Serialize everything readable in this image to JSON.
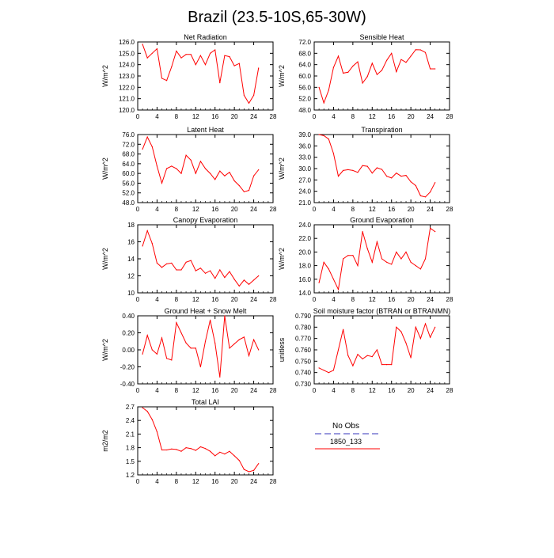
{
  "figure": {
    "title": "Brazil (23.5-10S,65-30W)"
  },
  "legend": {
    "entries": [
      {
        "label": "No Obs",
        "color": "#9999dd",
        "style": "dashed"
      },
      {
        "label": "1850_133",
        "color": "#ff0000",
        "style": "solid"
      }
    ]
  },
  "chart_data": [
    {
      "type": "line",
      "title": "Net Radiation",
      "ylabel": "W/m^2",
      "xlim": [
        0,
        28
      ],
      "xticks": [
        0,
        4,
        8,
        12,
        16,
        20,
        24,
        28
      ],
      "ylim": [
        120.0,
        126.0
      ],
      "yticks": [
        "120.0",
        "121.0",
        "122.0",
        "123.0",
        "124.0",
        "125.0",
        "126.0"
      ],
      "grid": false,
      "series": [
        {
          "name": "1850_133",
          "color": "#ff0000",
          "x": [
            1,
            2,
            3,
            4,
            5,
            6,
            7,
            8,
            9,
            10,
            11,
            12,
            13,
            14,
            15,
            16,
            17,
            18,
            19,
            20,
            21,
            22,
            23,
            24,
            25
          ],
          "y": [
            125.8,
            124.6,
            125.0,
            125.4,
            122.8,
            122.6,
            123.8,
            125.2,
            124.6,
            124.9,
            124.9,
            124.0,
            124.8,
            124.0,
            125.0,
            125.3,
            122.4,
            124.8,
            124.7,
            123.9,
            124.1,
            121.3,
            120.6,
            121.3,
            123.7
          ]
        }
      ]
    },
    {
      "type": "line",
      "title": "Sensible Heat",
      "ylabel": "W/m^2",
      "xlim": [
        0,
        28
      ],
      "xticks": [
        0,
        4,
        8,
        12,
        16,
        20,
        24,
        28
      ],
      "ylim": [
        48.0,
        72.0
      ],
      "yticks": [
        "48.0",
        "52.0",
        "56.0",
        "60.0",
        "64.0",
        "68.0",
        "72.0"
      ],
      "grid": false,
      "series": [
        {
          "name": "1850_133",
          "color": "#ff0000",
          "x": [
            1,
            2,
            3,
            4,
            5,
            6,
            7,
            8,
            9,
            10,
            11,
            12,
            13,
            14,
            15,
            16,
            17,
            18,
            19,
            20,
            21,
            22,
            23,
            24,
            25
          ],
          "y": [
            56.0,
            50.5,
            55.0,
            63.0,
            67.0,
            61.0,
            61.3,
            63.5,
            65.0,
            57.5,
            59.8,
            64.5,
            60.5,
            62.0,
            65.5,
            68.0,
            61.5,
            65.8,
            64.8,
            67.0,
            69.3,
            69.2,
            68.3,
            62.5,
            62.5
          ]
        }
      ]
    },
    {
      "type": "line",
      "title": "Latent Heat",
      "ylabel": "W/m^2",
      "xlim": [
        0,
        28
      ],
      "xticks": [
        0,
        4,
        8,
        12,
        16,
        20,
        24,
        28
      ],
      "ylim": [
        48.0,
        76.0
      ],
      "yticks": [
        "48.0",
        "52.0",
        "56.0",
        "60.0",
        "64.0",
        "68.0",
        "72.0",
        "76.0"
      ],
      "grid": false,
      "series": [
        {
          "name": "1850_133",
          "color": "#ff0000",
          "x": [
            1,
            2,
            3,
            4,
            5,
            6,
            7,
            8,
            9,
            10,
            11,
            12,
            13,
            14,
            15,
            16,
            17,
            18,
            19,
            20,
            21,
            22,
            23,
            24,
            25
          ],
          "y": [
            70.0,
            75.0,
            71.0,
            63.0,
            56.0,
            62.0,
            63.0,
            62.0,
            60.0,
            67.5,
            65.5,
            60.0,
            65.0,
            62.0,
            60.0,
            57.5,
            61.0,
            59.0,
            60.5,
            57.0,
            55.0,
            52.5,
            53.0,
            59.0,
            61.5
          ]
        }
      ]
    },
    {
      "type": "line",
      "title": "Transpiration",
      "ylabel": "W/m^2",
      "xlim": [
        0,
        28
      ],
      "xticks": [
        0,
        4,
        8,
        12,
        16,
        20,
        24,
        28
      ],
      "ylim": [
        21.0,
        39.0
      ],
      "yticks": [
        "21.0",
        "24.0",
        "27.0",
        "30.0",
        "33.0",
        "36.0",
        "39.0"
      ],
      "grid": false,
      "series": [
        {
          "name": "1850_133",
          "color": "#ff0000",
          "x": [
            1,
            2,
            3,
            4,
            5,
            6,
            7,
            8,
            9,
            10,
            11,
            12,
            13,
            14,
            15,
            16,
            17,
            18,
            19,
            20,
            21,
            22,
            23,
            24,
            25
          ],
          "y": [
            39.0,
            38.7,
            37.8,
            34.0,
            28.0,
            29.5,
            29.7,
            29.5,
            29.0,
            30.8,
            30.6,
            28.8,
            30.2,
            29.8,
            28.0,
            27.5,
            28.8,
            28.0,
            28.2,
            26.5,
            25.5,
            22.8,
            22.5,
            23.8,
            26.3
          ]
        }
      ]
    },
    {
      "type": "line",
      "title": "Canopy Evaporation",
      "ylabel": "W/m^2",
      "xlim": [
        0,
        28
      ],
      "xticks": [
        0,
        4,
        8,
        12,
        16,
        20,
        24,
        28
      ],
      "ylim": [
        10,
        18
      ],
      "yticks": [
        "10",
        "12",
        "14",
        "16",
        "18"
      ],
      "grid": false,
      "series": [
        {
          "name": "1850_133",
          "color": "#ff0000",
          "x": [
            1,
            2,
            3,
            4,
            5,
            6,
            7,
            8,
            9,
            10,
            11,
            12,
            13,
            14,
            15,
            16,
            17,
            18,
            19,
            20,
            21,
            22,
            23,
            24,
            25
          ],
          "y": [
            15.5,
            17.3,
            15.8,
            13.5,
            13.0,
            13.4,
            13.5,
            12.7,
            12.7,
            13.6,
            13.8,
            12.6,
            12.9,
            12.3,
            12.6,
            11.7,
            12.7,
            11.8,
            12.5,
            11.6,
            10.8,
            11.5,
            11.0,
            11.5,
            12.0
          ]
        }
      ]
    },
    {
      "type": "line",
      "title": "Ground Evaporation",
      "ylabel": "W/m^2",
      "xlim": [
        0,
        28
      ],
      "xticks": [
        0,
        4,
        8,
        12,
        16,
        20,
        24,
        28
      ],
      "ylim": [
        14.0,
        24.0
      ],
      "yticks": [
        "14.0",
        "16.0",
        "18.0",
        "20.0",
        "22.0",
        "24.0"
      ],
      "grid": false,
      "series": [
        {
          "name": "1850_133",
          "color": "#ff0000",
          "x": [
            1,
            2,
            3,
            4,
            5,
            6,
            7,
            8,
            9,
            10,
            11,
            12,
            13,
            14,
            15,
            16,
            17,
            18,
            19,
            20,
            21,
            22,
            23,
            24,
            25
          ],
          "y": [
            15.5,
            18.5,
            17.5,
            16.0,
            14.5,
            19.0,
            19.5,
            19.5,
            18.0,
            23.0,
            20.5,
            18.5,
            21.5,
            19.0,
            18.5,
            18.2,
            20.0,
            19.0,
            20.0,
            18.5,
            18.0,
            17.5,
            19.0,
            23.5,
            23.0
          ]
        }
      ]
    },
    {
      "type": "line",
      "title": "Ground Heat + Snow Melt",
      "ylabel": "W/m^2",
      "xlim": [
        0,
        28
      ],
      "xticks": [
        0,
        4,
        8,
        12,
        16,
        20,
        24,
        28
      ],
      "ylim": [
        -0.4,
        0.4
      ],
      "yticks": [
        "-0.40",
        "-0.20",
        "0.00",
        "0.20",
        "0.40"
      ],
      "grid": false,
      "series": [
        {
          "name": "1850_133",
          "color": "#ff0000",
          "x": [
            1,
            2,
            3,
            4,
            5,
            6,
            7,
            8,
            9,
            10,
            11,
            12,
            13,
            14,
            15,
            16,
            17,
            18,
            19,
            20,
            21,
            22,
            23,
            24,
            25
          ],
          "y": [
            -0.05,
            0.17,
            0.0,
            -0.05,
            0.14,
            -0.1,
            -0.12,
            0.32,
            0.2,
            0.08,
            0.02,
            0.02,
            -0.2,
            0.1,
            0.35,
            0.08,
            -0.32,
            0.4,
            0.02,
            0.07,
            0.12,
            0.15,
            -0.07,
            0.12,
            0.0
          ]
        }
      ]
    },
    {
      "type": "line",
      "title": "Soil moisture factor (BTRAN or BTRANMN)",
      "ylabel": "unitless",
      "xlim": [
        0,
        28
      ],
      "xticks": [
        0,
        4,
        8,
        12,
        16,
        20,
        24,
        28
      ],
      "ylim": [
        0.73,
        0.79
      ],
      "yticks": [
        "0.730",
        "0.740",
        "0.750",
        "0.760",
        "0.770",
        "0.780",
        "0.790"
      ],
      "grid": false,
      "series": [
        {
          "name": "1850_133",
          "color": "#ff0000",
          "x": [
            1,
            2,
            3,
            4,
            5,
            6,
            7,
            8,
            9,
            10,
            11,
            12,
            13,
            14,
            15,
            16,
            17,
            18,
            19,
            20,
            21,
            22,
            23,
            24,
            25
          ],
          "y": [
            0.744,
            0.742,
            0.74,
            0.742,
            0.76,
            0.778,
            0.755,
            0.746,
            0.756,
            0.752,
            0.755,
            0.754,
            0.76,
            0.747,
            0.747,
            0.747,
            0.78,
            0.776,
            0.766,
            0.753,
            0.78,
            0.77,
            0.783,
            0.771,
            0.78
          ]
        }
      ]
    },
    {
      "type": "line",
      "title": "Total LAI",
      "ylabel": "m2/m2",
      "xlim": [
        0,
        28
      ],
      "xticks": [
        0,
        4,
        8,
        12,
        16,
        20,
        24,
        28
      ],
      "ylim": [
        1.2,
        2.7
      ],
      "yticks": [
        "1.2",
        "1.5",
        "1.8",
        "2.1",
        "2.4",
        "2.7"
      ],
      "grid": false,
      "series": [
        {
          "name": "1850_133",
          "color": "#ff0000",
          "x": [
            1,
            2,
            3,
            4,
            5,
            6,
            7,
            8,
            9,
            10,
            11,
            12,
            13,
            14,
            15,
            16,
            17,
            18,
            19,
            20,
            21,
            22,
            23,
            24,
            25
          ],
          "y": [
            2.68,
            2.6,
            2.42,
            2.15,
            1.75,
            1.75,
            1.77,
            1.76,
            1.72,
            1.8,
            1.78,
            1.74,
            1.82,
            1.78,
            1.72,
            1.62,
            1.7,
            1.66,
            1.72,
            1.62,
            1.52,
            1.32,
            1.27,
            1.3,
            1.45
          ]
        }
      ]
    }
  ]
}
